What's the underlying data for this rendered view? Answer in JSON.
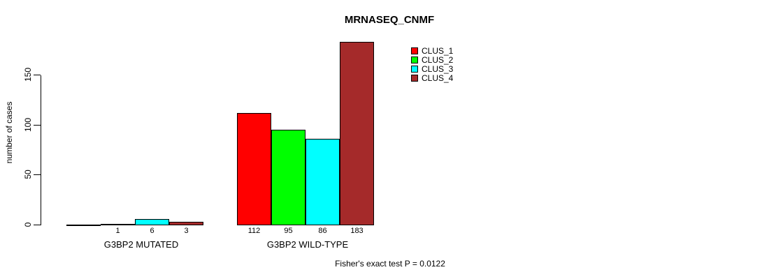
{
  "title": "MRNASEQ_CNMF",
  "chart_data": {
    "type": "bar",
    "title": "MRNASEQ_CNMF",
    "xlabel": "",
    "ylabel": "number of cases",
    "ylim": [
      0,
      185
    ],
    "yticks": [
      0,
      50,
      100,
      150
    ],
    "grid": false,
    "legend_position": "top-right-inside",
    "categories": [
      "G3BP2 MUTATED",
      "G3BP2 WILD-TYPE"
    ],
    "series": [
      {
        "name": "CLUS_1",
        "color": "#FF0000",
        "values": [
          0,
          112
        ]
      },
      {
        "name": "CLUS_2",
        "color": "#00FF00",
        "values": [
          1,
          95
        ]
      },
      {
        "name": "CLUS_3",
        "color": "#00FFFF",
        "values": [
          6,
          86
        ]
      },
      {
        "name": "CLUS_4",
        "color": "#A52A2A",
        "values": [
          3,
          183
        ]
      }
    ],
    "bar_value_labels": [
      {
        "series": "CLUS_1",
        "labels": [
          "",
          "112"
        ]
      },
      {
        "series": "CLUS_2",
        "labels": [
          "1",
          "95"
        ]
      },
      {
        "series": "CLUS_3",
        "labels": [
          "6",
          "86"
        ]
      },
      {
        "series": "CLUS_4",
        "labels": [
          "3",
          "183"
        ]
      }
    ],
    "annotation": "Fisher's exact test P = 0.0122"
  },
  "colors": {
    "axis": "#000000",
    "background": "#FFFFFF",
    "text": "#000000"
  }
}
